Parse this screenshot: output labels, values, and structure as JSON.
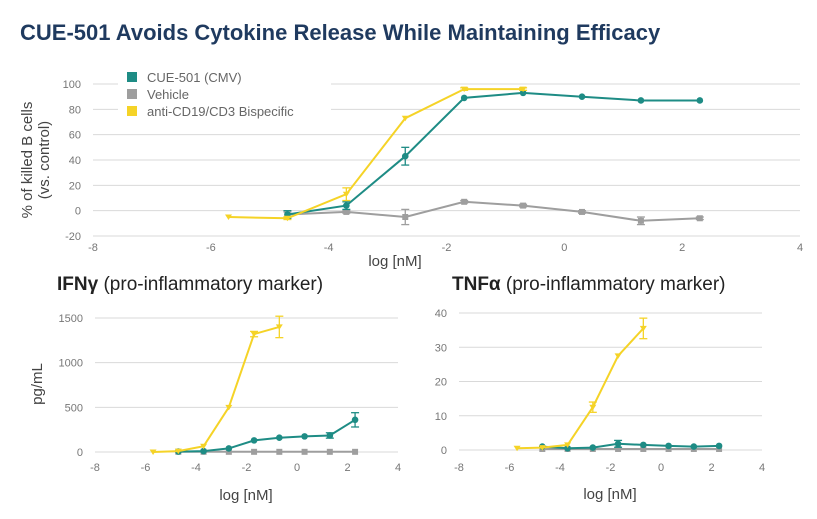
{
  "title": "CUE-501 Avoids Cytokine Release While Maintaining Efficacy",
  "colors": {
    "teal": "#1e8c85",
    "gray": "#9e9e9e",
    "yellow": "#f5d327",
    "grid": "#d9d9d9",
    "title": "#1f3a5f"
  },
  "chart_data": [
    {
      "type": "line",
      "title": "",
      "xlabel": "log [nM]",
      "ylabel": "% of killed B cells (vs. control)",
      "xlim": [
        -8,
        4
      ],
      "ylim": [
        -20,
        100
      ],
      "xticks": [
        -8,
        -6,
        -4,
        -2,
        0,
        2,
        4
      ],
      "yticks": [
        -20,
        0,
        20,
        40,
        60,
        80,
        100
      ],
      "legend": [
        "CUE-501 (CMV)",
        "Vehicle",
        "anti-CD19/CD3 Bispecific"
      ],
      "series": [
        {
          "name": "CUE-501 (CMV)",
          "color": "#1e8c85",
          "x": [
            -4.7,
            -3.7,
            -2.7,
            -1.7,
            -0.7,
            0.3,
            1.3,
            2.3
          ],
          "y": [
            -3,
            4,
            43,
            89,
            93,
            90,
            87,
            87
          ],
          "err": [
            3,
            3,
            7,
            0,
            0,
            0,
            0,
            0
          ]
        },
        {
          "name": "Vehicle",
          "color": "#9e9e9e",
          "x": [
            -4.7,
            -3.7,
            -2.7,
            -1.7,
            -0.7,
            0.3,
            1.3,
            2.3
          ],
          "y": [
            -3,
            -1,
            -5,
            7,
            4,
            -1,
            -8,
            -6
          ],
          "err": [
            2,
            1,
            6,
            1,
            1,
            1,
            3,
            1
          ]
        },
        {
          "name": "anti-CD19/CD3 Bispecific",
          "color": "#f5d327",
          "x": [
            -5.7,
            -4.7,
            -3.7,
            -2.7,
            -1.7,
            -0.7
          ],
          "y": [
            -5,
            -6,
            13,
            73,
            96,
            96
          ],
          "err": [
            0,
            1,
            5,
            0,
            1,
            1
          ]
        }
      ]
    },
    {
      "type": "line",
      "title": "IFNγ (pro-inflammatory marker)",
      "title_bold": "IFNγ",
      "title_rest": " (pro-inflammatory marker)",
      "xlabel": "log [nM]",
      "ylabel": "pg/mL",
      "xlim": [
        -8,
        4
      ],
      "ylim": [
        0,
        1500
      ],
      "xticks": [
        -8,
        -6,
        -4,
        -2,
        0,
        2,
        4
      ],
      "yticks": [
        0,
        500,
        1000,
        1500
      ],
      "series": [
        {
          "name": "CUE-501 (CMV)",
          "color": "#1e8c85",
          "x": [
            -4.7,
            -3.7,
            -2.7,
            -1.7,
            -0.7,
            0.3,
            1.3,
            2.3
          ],
          "y": [
            5,
            10,
            40,
            130,
            160,
            175,
            185,
            360
          ],
          "err": [
            0,
            0,
            0,
            0,
            0,
            0,
            30,
            80
          ]
        },
        {
          "name": "Vehicle",
          "color": "#9e9e9e",
          "x": [
            -4.7,
            -3.7,
            -2.7,
            -1.7,
            -0.7,
            0.3,
            1.3,
            2.3
          ],
          "y": [
            2,
            2,
            2,
            2,
            2,
            2,
            2,
            2
          ],
          "err": [
            0,
            0,
            0,
            0,
            0,
            0,
            0,
            0
          ]
        },
        {
          "name": "anti-CD19/CD3 Bispecific",
          "color": "#f5d327",
          "x": [
            -5.7,
            -4.7,
            -3.7,
            -2.7,
            -1.7,
            -0.7
          ],
          "y": [
            0,
            10,
            65,
            500,
            1320,
            1400
          ],
          "err": [
            0,
            0,
            0,
            0,
            30,
            120
          ]
        }
      ]
    },
    {
      "type": "line",
      "title": "TNFα (pro-inflammatory marker)",
      "title_bold": "TNFα",
      "title_rest": " (pro-inflammatory marker)",
      "xlabel": "log [nM]",
      "ylabel": "",
      "xlim": [
        -8,
        4
      ],
      "ylim": [
        0,
        40
      ],
      "xticks": [
        -8,
        -6,
        -4,
        -2,
        0,
        2,
        4
      ],
      "yticks": [
        0,
        10,
        20,
        30,
        40
      ],
      "series": [
        {
          "name": "CUE-501 (CMV)",
          "color": "#1e8c85",
          "x": [
            -4.7,
            -3.7,
            -2.7,
            -1.7,
            -0.7,
            0.3,
            1.3,
            2.3
          ],
          "y": [
            1,
            0.5,
            0.7,
            1.8,
            1.5,
            1.2,
            1,
            1.2
          ],
          "err": [
            0,
            0,
            0,
            1,
            0,
            0,
            0,
            0
          ]
        },
        {
          "name": "Vehicle",
          "color": "#9e9e9e",
          "x": [
            -4.7,
            -3.7,
            -2.7,
            -1.7,
            -0.7,
            0.3,
            1.3,
            2.3
          ],
          "y": [
            0.3,
            0.3,
            0.3,
            0.3,
            0.3,
            0.3,
            0.3,
            0.3
          ],
          "err": [
            0,
            0,
            0,
            0,
            0,
            0,
            0,
            0
          ]
        },
        {
          "name": "anti-CD19/CD3 Bispecific",
          "color": "#f5d327",
          "x": [
            -5.7,
            -4.7,
            -3.7,
            -2.7,
            -1.7,
            -0.7
          ],
          "y": [
            0.5,
            0.7,
            1.5,
            12.5,
            27.5,
            35.5
          ],
          "err": [
            0,
            0,
            0,
            1.5,
            0,
            3
          ]
        }
      ]
    }
  ]
}
